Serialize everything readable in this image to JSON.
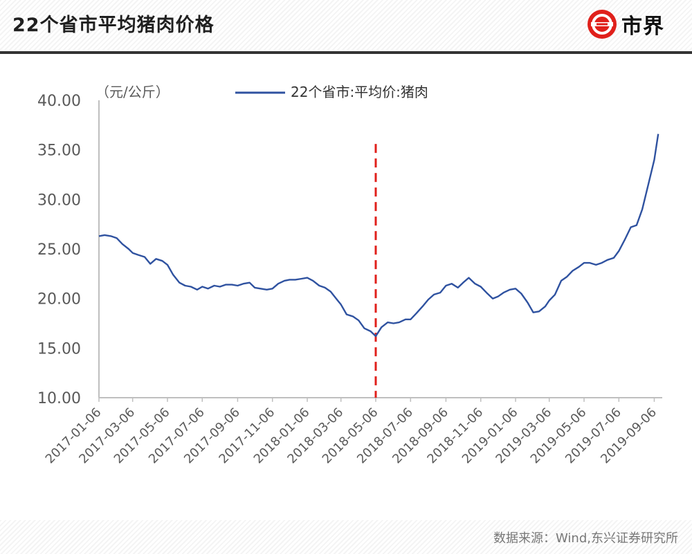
{
  "header": {
    "title": "22个省市平均猪肉价格",
    "brand_name": "市界"
  },
  "footer": {
    "source": "数据来源：Wind,东兴证券研究所"
  },
  "colors": {
    "line": "#2f52a0",
    "marker": "#e0201b",
    "axis": "#bfbfbf",
    "text": "#595959"
  },
  "chart_data": {
    "type": "line",
    "unit_label": "（元/公斤）",
    "ylim": [
      10,
      40
    ],
    "yticks": [
      "10.00",
      "15.00",
      "20.00",
      "25.00",
      "30.00",
      "35.00",
      "40.00"
    ],
    "xlim": [
      "2017-01-06",
      "2019-09-20"
    ],
    "xticks": [
      "2017-01-06",
      "2017-03-06",
      "2017-05-06",
      "2017-07-06",
      "2017-09-06",
      "2017-11-06",
      "2018-01-06",
      "2018-03-06",
      "2018-05-06",
      "2018-07-06",
      "2018-09-06",
      "2018-11-06",
      "2019-01-06",
      "2019-03-06",
      "2019-05-06",
      "2019-07-06",
      "2019-09-06"
    ],
    "grid": false,
    "legend": "top",
    "marker_line_date": "2018-05-06",
    "series": [
      {
        "name": "22个省市:平均价:猪肉",
        "x": [
          "2017-01-06",
          "2017-01-16",
          "2017-01-27",
          "2017-02-06",
          "2017-02-16",
          "2017-02-27",
          "2017-03-06",
          "2017-03-16",
          "2017-03-27",
          "2017-04-06",
          "2017-04-16",
          "2017-04-27",
          "2017-05-06",
          "2017-05-16",
          "2017-05-27",
          "2017-06-06",
          "2017-06-16",
          "2017-06-27",
          "2017-07-06",
          "2017-07-16",
          "2017-07-27",
          "2017-08-06",
          "2017-08-16",
          "2017-08-27",
          "2017-09-06",
          "2017-09-16",
          "2017-09-27",
          "2017-10-06",
          "2017-10-16",
          "2017-10-27",
          "2017-11-06",
          "2017-11-16",
          "2017-11-27",
          "2017-12-06",
          "2017-12-16",
          "2017-12-27",
          "2018-01-06",
          "2018-01-16",
          "2018-01-27",
          "2018-02-06",
          "2018-02-16",
          "2018-02-27",
          "2018-03-06",
          "2018-03-16",
          "2018-03-27",
          "2018-04-06",
          "2018-04-16",
          "2018-04-27",
          "2018-05-06",
          "2018-05-16",
          "2018-05-27",
          "2018-06-06",
          "2018-06-16",
          "2018-06-27",
          "2018-07-06",
          "2018-07-16",
          "2018-07-27",
          "2018-08-06",
          "2018-08-16",
          "2018-08-27",
          "2018-09-06",
          "2018-09-16",
          "2018-09-27",
          "2018-10-06",
          "2018-10-16",
          "2018-10-27",
          "2018-11-06",
          "2018-11-16",
          "2018-11-27",
          "2018-12-06",
          "2018-12-16",
          "2018-12-27",
          "2019-01-06",
          "2019-01-16",
          "2019-01-27",
          "2019-02-06",
          "2019-02-16",
          "2019-02-27",
          "2019-03-06",
          "2019-03-16",
          "2019-03-27",
          "2019-04-06",
          "2019-04-16",
          "2019-04-27",
          "2019-05-06",
          "2019-05-16",
          "2019-05-27",
          "2019-06-06",
          "2019-06-16",
          "2019-06-27",
          "2019-07-06",
          "2019-07-16",
          "2019-07-27",
          "2019-08-06",
          "2019-08-16",
          "2019-08-27",
          "2019-09-06",
          "2019-09-13"
        ],
        "values": [
          26.3,
          26.4,
          26.3,
          26.1,
          25.5,
          25.0,
          24.6,
          24.4,
          24.2,
          23.5,
          24.0,
          23.8,
          23.4,
          22.4,
          21.6,
          21.3,
          21.2,
          20.9,
          21.2,
          21.0,
          21.3,
          21.2,
          21.4,
          21.4,
          21.3,
          21.5,
          21.6,
          21.1,
          21.0,
          20.9,
          21.0,
          21.5,
          21.8,
          21.9,
          21.9,
          22.0,
          22.1,
          21.8,
          21.3,
          21.1,
          20.7,
          19.9,
          19.4,
          18.4,
          18.2,
          17.8,
          17.0,
          16.7,
          16.2,
          17.1,
          17.6,
          17.5,
          17.6,
          17.9,
          17.9,
          18.5,
          19.2,
          19.9,
          20.4,
          20.6,
          21.3,
          21.5,
          21.1,
          21.6,
          22.1,
          21.5,
          21.2,
          20.6,
          20.0,
          20.2,
          20.6,
          20.9,
          21.0,
          20.5,
          19.6,
          18.6,
          18.7,
          19.2,
          19.8,
          20.4,
          21.8,
          22.2,
          22.8,
          23.2,
          23.6,
          23.6,
          23.4,
          23.6,
          23.9,
          24.1,
          24.8,
          25.9,
          27.2,
          27.4,
          29.0,
          31.6,
          34.0,
          36.6
        ]
      }
    ]
  }
}
